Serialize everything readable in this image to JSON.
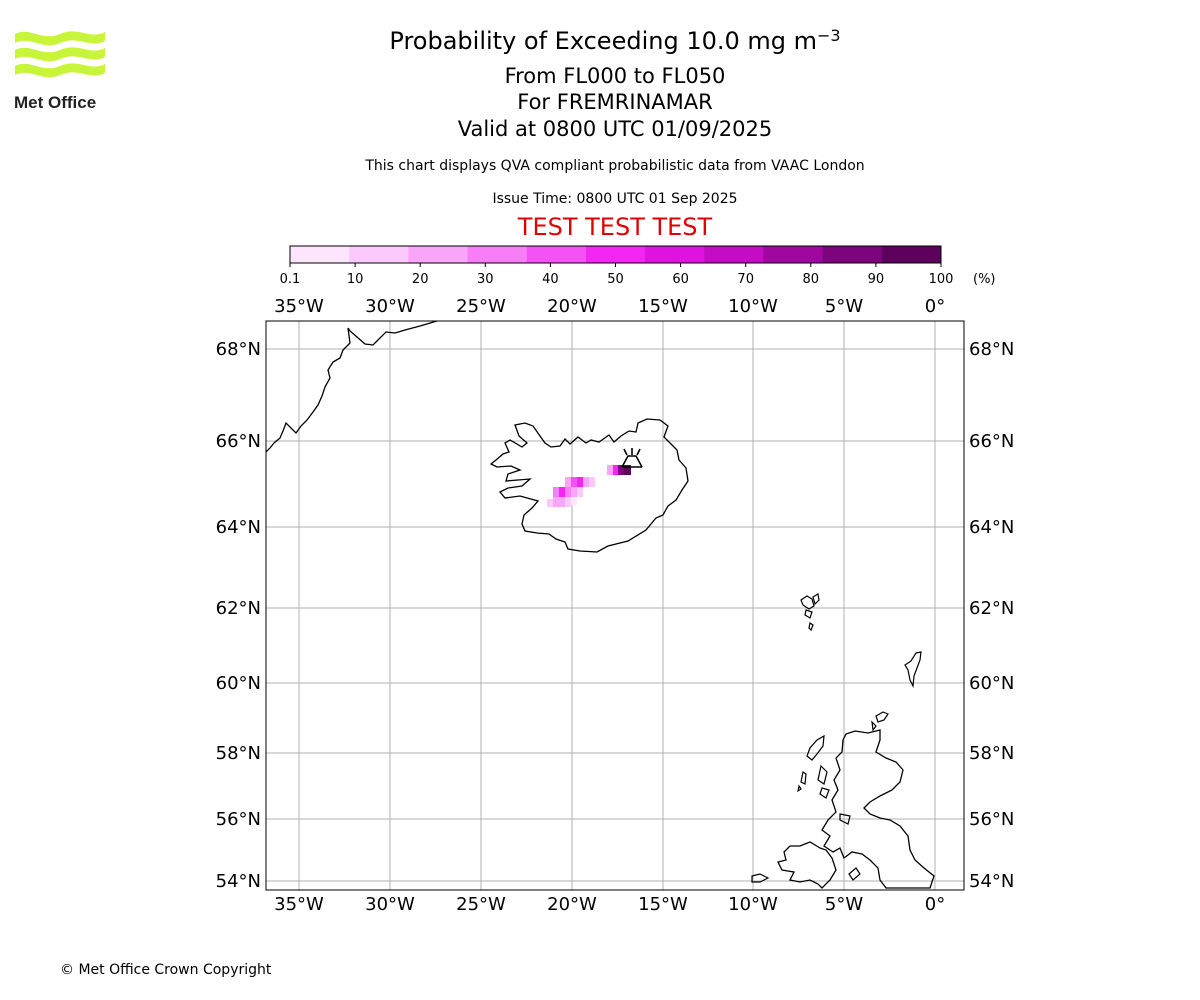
{
  "logo": {
    "text": "Met Office",
    "color": "#c8f53a"
  },
  "header": {
    "title_prefix": "Probability of Exceeding 10.0 mg m",
    "title_exponent": "−3",
    "level_range": "From FL000 to FL050",
    "volcano": "For FREMRINAMAR",
    "valid_time": "Valid at 0800 UTC 01/09/2025",
    "description": "This chart displays QVA compliant probabilistic data from VAAC London",
    "issue_time": "Issue Time: 0800 UTC 01 Sep 2025",
    "test_banner": "TEST TEST TEST"
  },
  "colorbar": {
    "ticks": [
      "0.1",
      "10",
      "20",
      "30",
      "40",
      "50",
      "60",
      "70",
      "80",
      "90",
      "100"
    ],
    "unit": "(%)",
    "colors": [
      "#fde6fd",
      "#fbc9fb",
      "#f9a6f9",
      "#f77ef7",
      "#f552f5",
      "#f325f3",
      "#e012e0",
      "#c40cc4",
      "#a006a0",
      "#7e047e",
      "#5c005c"
    ]
  },
  "map": {
    "lon_labels": [
      "35°W",
      "30°W",
      "25°W",
      "20°W",
      "15°W",
      "10°W",
      "5°W",
      "0°"
    ],
    "lat_labels": [
      "68°N",
      "66°N",
      "64°N",
      "62°N",
      "60°N",
      "58°N",
      "56°N",
      "54°N"
    ],
    "volcano_icon": "volcano-icon",
    "grid_color": "#b0b0b0"
  },
  "footer": {
    "copyright": "© Met Office Crown Copyright"
  }
}
